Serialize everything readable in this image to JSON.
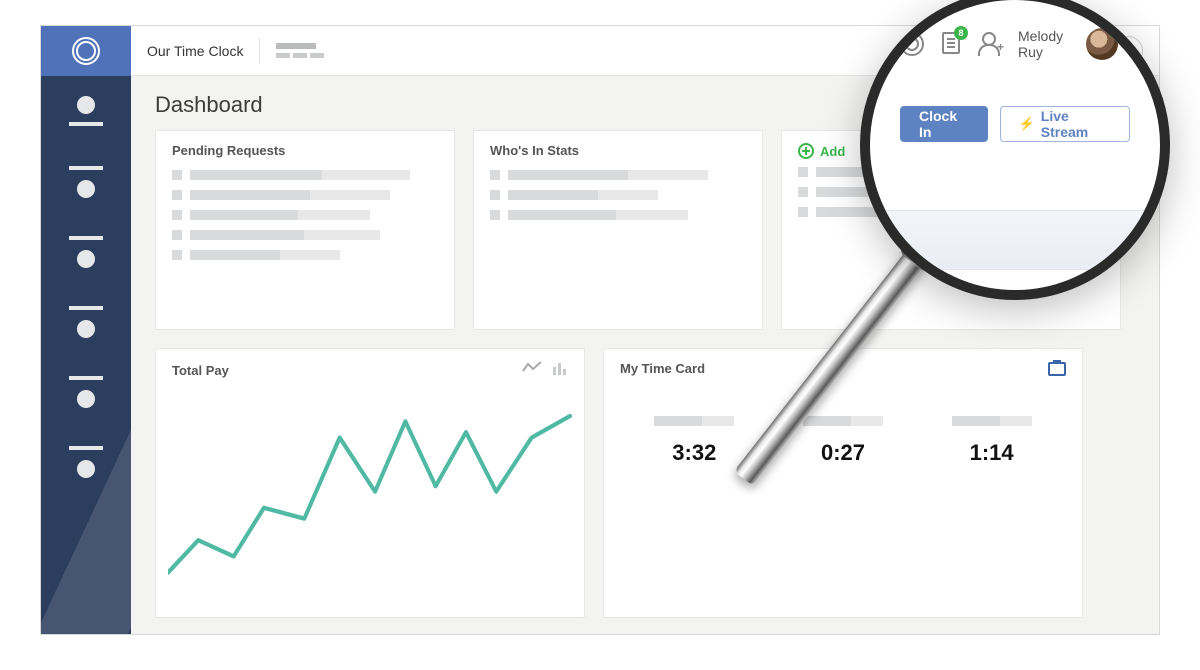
{
  "app": {
    "brand": "Our Time Clock",
    "page_title": "Dashboard"
  },
  "colors": {
    "sidebar_bg": "#2c3e5d",
    "sidebar_top": "#5072b8",
    "accent": "#5e83c3",
    "success": "#3bb54a",
    "chart_line": "#4fb9a3",
    "placeholder": "#d9dadb",
    "page_bg": "#f3f3f2",
    "card_border": "#e7e7e7",
    "text_dark": "#3c3c3c"
  },
  "sidebar": {
    "items": [
      {
        "style": "std"
      },
      {
        "style": "alt"
      },
      {
        "style": "alt"
      },
      {
        "style": "alt"
      },
      {
        "style": "alt"
      },
      {
        "style": "alt"
      }
    ]
  },
  "cards": {
    "pending": {
      "title": "Pending Requests",
      "rows": 5,
      "bar_widths": [
        220,
        200,
        180,
        190,
        150
      ]
    },
    "whos_in": {
      "title": "Who's In Stats",
      "rows": 3,
      "bar_widths": [
        200,
        150,
        180
      ]
    },
    "add": {
      "title": "Add",
      "rows": 3,
      "bar_widths": [
        230,
        260,
        210
      ]
    }
  },
  "chart": {
    "title": "Total Pay",
    "type": "line",
    "line_color": "#4fb9a3",
    "line_width": 4,
    "xlim": [
      0,
      400
    ],
    "ylim": [
      0,
      200
    ],
    "points": [
      [
        0,
        170
      ],
      [
        30,
        140
      ],
      [
        65,
        155
      ],
      [
        95,
        110
      ],
      [
        135,
        120
      ],
      [
        170,
        45
      ],
      [
        205,
        95
      ],
      [
        235,
        30
      ],
      [
        265,
        90
      ],
      [
        295,
        40
      ],
      [
        325,
        95
      ],
      [
        360,
        45
      ],
      [
        398,
        25
      ]
    ]
  },
  "timecard": {
    "title": "My Time Card",
    "cells": [
      {
        "value": "3:32"
      },
      {
        "value": "0:27"
      },
      {
        "value": "1:14"
      }
    ]
  },
  "magnifier": {
    "user_name": "Melody Ruy",
    "doc_badge": "8",
    "avatar_badge": "0",
    "clock_in_label": "Clock In",
    "live_stream_label": "Live Stream"
  }
}
